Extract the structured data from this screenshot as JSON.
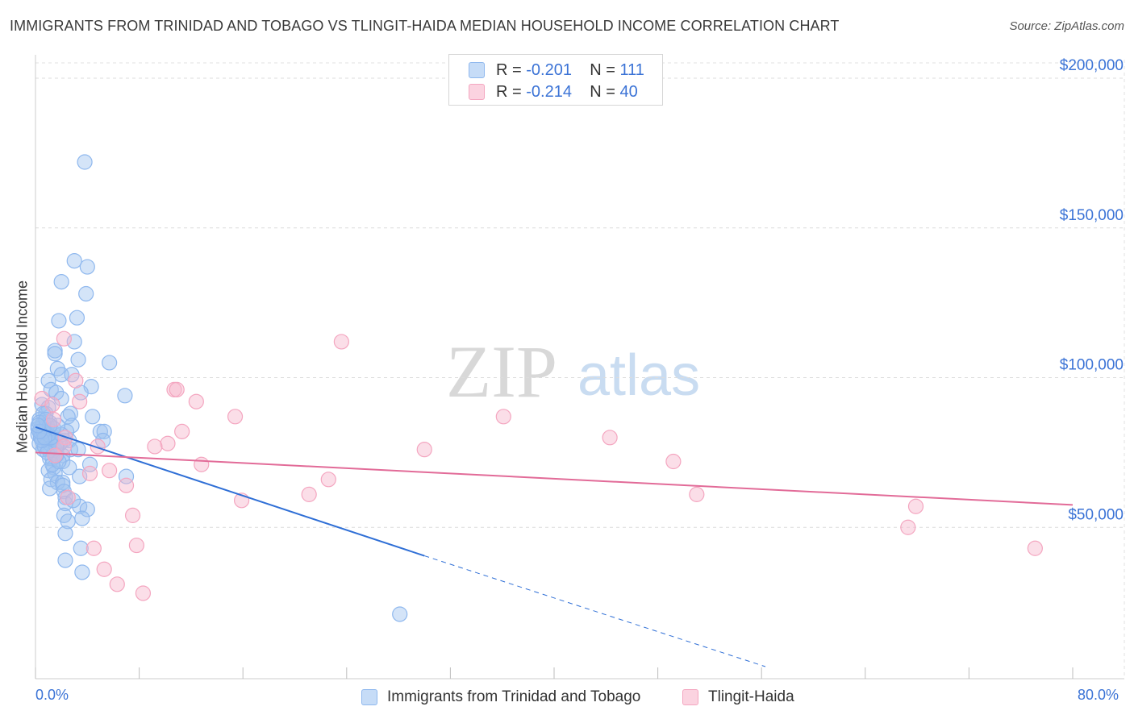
{
  "title": "IMMIGRANTS FROM TRINIDAD AND TOBAGO VS TLINGIT-HAIDA MEDIAN HOUSEHOLD INCOME CORRELATION CHART",
  "source": "Source: ZipAtlas.com",
  "watermark": {
    "zip": "ZIP",
    "atlas": "atlas"
  },
  "legend_top": {
    "rows": [
      {
        "r_label": "R =",
        "r_value": "-0.201",
        "n_label": "N =",
        "n_value": "111",
        "color": "#8fb8ee"
      },
      {
        "r_label": "R =",
        "r_value": "-0.214",
        "n_label": "N =",
        "n_value": "40",
        "color": "#f4a6c0"
      }
    ]
  },
  "legend_bottom": {
    "items": [
      {
        "label": "Immigrants from Trinidad and Tobago",
        "color": "#8fb8ee"
      },
      {
        "label": "Tlingit-Haida",
        "color": "#f4a6c0"
      }
    ]
  },
  "chart_data": {
    "type": "scatter",
    "title": "IMMIGRANTS FROM TRINIDAD AND TOBAGO VS TLINGIT-HAIDA MEDIAN HOUSEHOLD INCOME CORRELATION CHART",
    "xlabel": "",
    "ylabel": "Median Household Income",
    "xlim": [
      0,
      80
    ],
    "ylim": [
      0,
      200000
    ],
    "x_tick_labels": [
      "0.0%",
      "80.0%"
    ],
    "y_ticks": [
      50000,
      100000,
      150000,
      200000
    ],
    "y_tick_labels": [
      "$50,000",
      "$100,000",
      "$150,000",
      "$200,000"
    ],
    "grid": true,
    "legend_position": "top-center",
    "series": [
      {
        "name": "Immigrants from Trinidad and Tobago",
        "color": "#8fb8ee",
        "line_color": "#2f6fd6",
        "trend": {
          "x_start": 0,
          "y_start": 83500,
          "x_solid_end": 30,
          "y_solid_end": 40500,
          "x_dash_end": 56.3,
          "y_dash_end": 3500
        },
        "points": [
          [
            3.8,
            172000
          ],
          [
            3.0,
            139000
          ],
          [
            4.0,
            137000
          ],
          [
            2.0,
            132000
          ],
          [
            3.9,
            128000
          ],
          [
            3.2,
            120000
          ],
          [
            1.8,
            119000
          ],
          [
            3.0,
            112000
          ],
          [
            1.5,
            109000
          ],
          [
            1.5,
            108000
          ],
          [
            3.3,
            106000
          ],
          [
            5.7,
            105000
          ],
          [
            1.7,
            103000
          ],
          [
            2.0,
            101000
          ],
          [
            2.8,
            101000
          ],
          [
            1.0,
            99000
          ],
          [
            4.3,
            97000
          ],
          [
            1.2,
            96000
          ],
          [
            1.6,
            95000
          ],
          [
            3.5,
            95000
          ],
          [
            6.9,
            94000
          ],
          [
            2.0,
            93000
          ],
          [
            0.5,
            91000
          ],
          [
            1.0,
            90000
          ],
          [
            0.8,
            88000
          ],
          [
            2.7,
            88000
          ],
          [
            2.5,
            87000
          ],
          [
            4.4,
            87000
          ],
          [
            0.3,
            86000
          ],
          [
            0.6,
            85000
          ],
          [
            1.1,
            85000
          ],
          [
            2.8,
            84000
          ],
          [
            0.4,
            83000
          ],
          [
            0.8,
            82000
          ],
          [
            1.3,
            82000
          ],
          [
            5.0,
            82000
          ],
          [
            5.3,
            82000
          ],
          [
            0.2,
            81000
          ],
          [
            0.5,
            80000
          ],
          [
            1.5,
            80000
          ],
          [
            0.9,
            79000
          ],
          [
            2.2,
            79000
          ],
          [
            2.6,
            79000
          ],
          [
            5.2,
            79000
          ],
          [
            0.3,
            78000
          ],
          [
            0.7,
            77000
          ],
          [
            0.6,
            76000
          ],
          [
            1.0,
            76000
          ],
          [
            1.5,
            76000
          ],
          [
            2.7,
            76000
          ],
          [
            3.3,
            76000
          ],
          [
            1.4,
            75000
          ],
          [
            2.1,
            74000
          ],
          [
            1.1,
            73000
          ],
          [
            1.3,
            73000
          ],
          [
            2.1,
            72000
          ],
          [
            4.2,
            71000
          ],
          [
            1.4,
            70000
          ],
          [
            1.0,
            69000
          ],
          [
            1.5,
            68000
          ],
          [
            3.4,
            67000
          ],
          [
            7.0,
            67000
          ],
          [
            1.2,
            66000
          ],
          [
            1.7,
            65000
          ],
          [
            2.1,
            65000
          ],
          [
            2.1,
            64000
          ],
          [
            1.1,
            63000
          ],
          [
            2.2,
            62000
          ],
          [
            2.3,
            60000
          ],
          [
            2.3,
            58000
          ],
          [
            3.4,
            57000
          ],
          [
            4.0,
            56000
          ],
          [
            2.2,
            54000
          ],
          [
            3.6,
            53000
          ],
          [
            2.5,
            52000
          ],
          [
            2.3,
            48000
          ],
          [
            3.5,
            43000
          ],
          [
            2.3,
            39000
          ],
          [
            3.6,
            35000
          ],
          [
            28.1,
            21000
          ],
          [
            0.4,
            82000
          ],
          [
            0.9,
            84000
          ],
          [
            1.8,
            79000
          ],
          [
            0.6,
            88000
          ],
          [
            1.9,
            78000
          ],
          [
            0.2,
            83000
          ],
          [
            0.5,
            84000
          ],
          [
            1.1,
            78000
          ],
          [
            2.4,
            82000
          ],
          [
            0.7,
            77000
          ],
          [
            1.6,
            77000
          ],
          [
            0.3,
            85000
          ],
          [
            1.2,
            80000
          ],
          [
            2.0,
            81000
          ],
          [
            0.8,
            86000
          ],
          [
            1.4,
            83000
          ],
          [
            0.4,
            80000
          ],
          [
            1.0,
            81000
          ],
          [
            0.6,
            82000
          ],
          [
            1.7,
            84000
          ],
          [
            0.9,
            75000
          ],
          [
            2.6,
            70000
          ],
          [
            1.3,
            71000
          ],
          [
            0.5,
            79000
          ],
          [
            1.8,
            72000
          ],
          [
            0.7,
            80000
          ],
          [
            1.1,
            84000
          ],
          [
            0.3,
            82000
          ],
          [
            1.6,
            74000
          ],
          [
            2.9,
            59000
          ],
          [
            0.2,
            84000
          ]
        ]
      },
      {
        "name": "Tlingit-Haida",
        "color": "#f4a6c0",
        "line_color": "#e26b98",
        "trend": {
          "x_start": 0,
          "y_start": 75000,
          "x_end": 80,
          "y_end": 57500
        },
        "points": [
          [
            0.5,
            93000
          ],
          [
            1.3,
            91000
          ],
          [
            2.2,
            113000
          ],
          [
            3.1,
            99000
          ],
          [
            3.4,
            92000
          ],
          [
            1.4,
            86000
          ],
          [
            2.3,
            80000
          ],
          [
            2.2,
            77000
          ],
          [
            4.8,
            77000
          ],
          [
            1.5,
            74000
          ],
          [
            4.2,
            68000
          ],
          [
            5.7,
            69000
          ],
          [
            7.0,
            64000
          ],
          [
            7.5,
            54000
          ],
          [
            7.8,
            44000
          ],
          [
            4.5,
            43000
          ],
          [
            5.3,
            36000
          ],
          [
            6.3,
            31000
          ],
          [
            8.3,
            28000
          ],
          [
            10.7,
            96000
          ],
          [
            10.9,
            96000
          ],
          [
            12.4,
            92000
          ],
          [
            11.3,
            82000
          ],
          [
            10.2,
            78000
          ],
          [
            9.2,
            77000
          ],
          [
            12.8,
            71000
          ],
          [
            15.4,
            87000
          ],
          [
            15.9,
            59000
          ],
          [
            23.6,
            112000
          ],
          [
            22.6,
            66000
          ],
          [
            21.1,
            61000
          ],
          [
            30.0,
            76000
          ],
          [
            36.1,
            87000
          ],
          [
            44.3,
            80000
          ],
          [
            49.2,
            72000
          ],
          [
            51.0,
            61000
          ],
          [
            67.9,
            57000
          ],
          [
            67.3,
            50000
          ],
          [
            77.1,
            43000
          ],
          [
            2.5,
            60000
          ]
        ]
      }
    ]
  }
}
